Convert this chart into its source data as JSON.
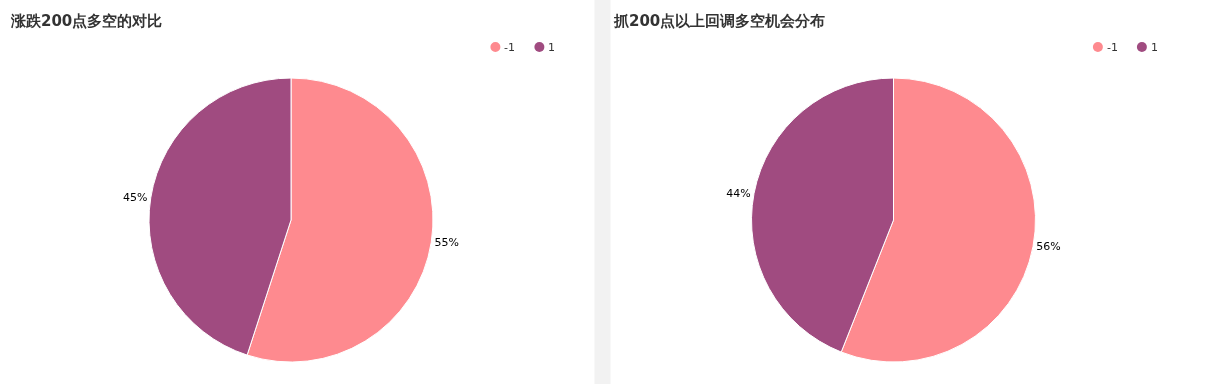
{
  "chart_data": [
    {
      "type": "pie",
      "title": "涨跌200点多空的对比",
      "categories": [
        "-1",
        "1"
      ],
      "values": [
        55,
        45
      ],
      "colors": [
        "#fe8a8f",
        "#a04b80"
      ],
      "value_labels": [
        "55%",
        "45%"
      ],
      "legend": "top right"
    },
    {
      "type": "pie",
      "title": "抓200点以上回调多空机会分布",
      "categories": [
        "-1",
        "1"
      ],
      "values": [
        56,
        44
      ],
      "colors": [
        "#fe8a8f",
        "#a04b80"
      ],
      "value_labels": [
        "56%",
        "44%"
      ],
      "legend": "top right"
    }
  ]
}
